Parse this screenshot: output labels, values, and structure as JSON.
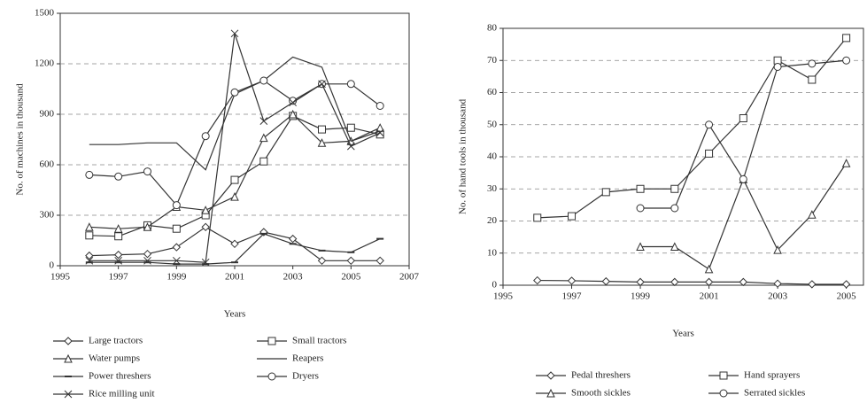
{
  "chart_data": [
    {
      "type": "line",
      "x_label": "Years",
      "y_label": "No. of machines in thousand",
      "x": [
        1996,
        1997,
        1998,
        1999,
        2000,
        2001,
        2002,
        2003,
        2004,
        2005,
        2006
      ],
      "xlim": [
        1995,
        2007
      ],
      "xticks": [
        1995,
        1997,
        1999,
        2001,
        2003,
        2005,
        2007
      ],
      "ylim": [
        0,
        1500
      ],
      "yticks": [
        0,
        300,
        600,
        900,
        1200,
        1500
      ],
      "grid": true,
      "series": [
        {
          "name": "Large tractors",
          "color": "#333333",
          "marker": "diamond",
          "values": [
            60,
            65,
            70,
            110,
            230,
            130,
            200,
            160,
            30,
            30,
            30
          ]
        },
        {
          "name": "Small tractors",
          "color": "#333333",
          "marker": "square",
          "values": [
            180,
            175,
            240,
            220,
            300,
            510,
            620,
            890,
            810,
            820,
            780
          ]
        },
        {
          "name": "Water pumps",
          "color": "#333333",
          "marker": "triangle",
          "values": [
            230,
            220,
            230,
            350,
            330,
            410,
            760,
            900,
            730,
            740,
            820
          ]
        },
        {
          "name": "Reapers",
          "color": "#333333",
          "marker": "none",
          "values": [
            720,
            720,
            730,
            730,
            570,
            1020,
            1100,
            1240,
            1180,
            740,
            800
          ]
        },
        {
          "name": "Power threshers",
          "color": "#333333",
          "marker": "dash",
          "values": [
            20,
            20,
            20,
            10,
            10,
            20,
            190,
            130,
            90,
            80,
            160
          ]
        },
        {
          "name": "Dryers",
          "color": "#333333",
          "marker": "circle",
          "values": [
            540,
            530,
            560,
            360,
            770,
            1030,
            1100,
            980,
            1080,
            1080,
            950
          ]
        },
        {
          "name": "Rice milling unit",
          "color": "#333333",
          "marker": "cross",
          "values": [
            30,
            30,
            30,
            30,
            20,
            1380,
            860,
            970,
            1080,
            710,
            790
          ]
        }
      ]
    },
    {
      "type": "line",
      "x_label": "Years",
      "y_label": "No. of hand tools in thousand",
      "x": [
        1996,
        1997,
        1998,
        1999,
        2000,
        2001,
        2002,
        2003,
        2004,
        2005
      ],
      "xlim": [
        1995,
        2005.5
      ],
      "xticks": [
        1995,
        1997,
        1999,
        2001,
        2003,
        2005
      ],
      "ylim": [
        0,
        80
      ],
      "yticks": [
        0,
        10,
        20,
        30,
        40,
        50,
        60,
        70,
        80
      ],
      "grid": true,
      "series": [
        {
          "name": "Pedal threshers",
          "color": "#333333",
          "marker": "diamond",
          "values": [
            1.5,
            1.4,
            1.2,
            1,
            1,
            1,
            1,
            0.5,
            0.3,
            0.3
          ]
        },
        {
          "name": "Hand sprayers",
          "color": "#333333",
          "marker": "square",
          "values": [
            21,
            21.5,
            29,
            30,
            30,
            41,
            52,
            70,
            64,
            77
          ]
        },
        {
          "name": "Smooth sickles",
          "color": "#333333",
          "marker": "triangle",
          "values": [
            null,
            null,
            null,
            12,
            12,
            5,
            33,
            11,
            22,
            38
          ]
        },
        {
          "name": "Serrated sickles",
          "color": "#333333",
          "marker": "circle",
          "values": [
            null,
            null,
            null,
            24,
            24,
            50,
            33,
            68,
            69,
            70
          ]
        }
      ]
    }
  ]
}
